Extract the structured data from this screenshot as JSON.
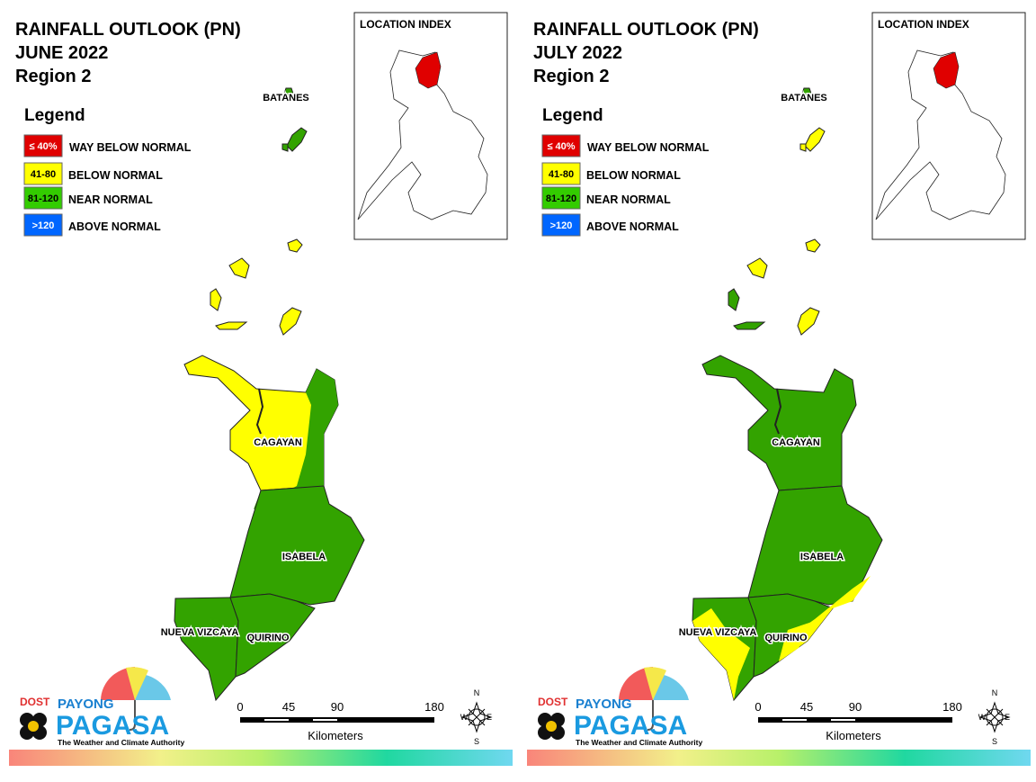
{
  "panels": [
    {
      "title": [
        "RAINFALL OUTLOOK (PN)",
        "JUNE 2022",
        "Region 2"
      ]
    },
    {
      "title": [
        "RAINFALL OUTLOOK (PN)",
        "JULY 2022",
        "Region 2"
      ]
    }
  ],
  "legend": {
    "title": "Legend",
    "items": [
      {
        "label": "≤ 40%",
        "text": "WAY BELOW NORMAL",
        "color": "#e00000",
        "label_color": "#ffffff"
      },
      {
        "label": "41-80",
        "text": "BELOW NORMAL",
        "color": "#ffff00",
        "label_color": "#000000"
      },
      {
        "label": "81-120",
        "text": "NEAR NORMAL",
        "color": "#33cc00",
        "label_color": "#000000"
      },
      {
        "label": ">120",
        "text": "ABOVE NORMAL",
        "color": "#0066ff",
        "label_color": "#ffffff"
      }
    ]
  },
  "location_index": "LOCATION INDEX",
  "provinces": [
    "BATANES",
    "CAGAYAN",
    "ISABELA",
    "NUEVA VIZCAYA",
    "QUIRINO"
  ],
  "scale": {
    "ticks": [
      0,
      45,
      90,
      180
    ],
    "unit": "Kilometers"
  },
  "compass": [
    "N",
    "E",
    "S",
    "W"
  ],
  "logo": {
    "agency": "DOST",
    "top": "PAYONG",
    "main": "PAGASA",
    "tagline": "The Weather and Climate Authority"
  }
}
